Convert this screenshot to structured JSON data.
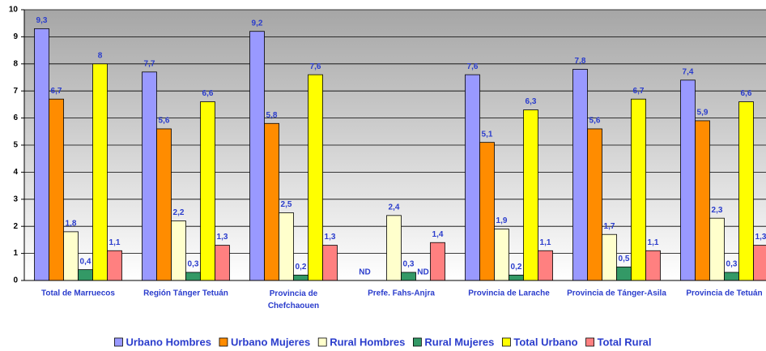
{
  "chart_data": {
    "type": "bar",
    "categories": [
      "Total de Marruecos",
      "Región Tánger Tetuán",
      "Provincia de Chefchaouen",
      "Prefe. Fahs-Anjra",
      "Provincia de Larache",
      "Provincia de Tánger-Asila",
      "Provincia de Tetuán"
    ],
    "series": [
      {
        "name": "Urbano Hombres",
        "color": "#9999ff",
        "values": [
          9.3,
          7.7,
          9.2,
          null,
          7.6,
          7.8,
          7.4
        ],
        "value_labels": [
          "9,3",
          "7,7",
          "9,2",
          "ND",
          "7,6",
          "7,8",
          "7,4"
        ]
      },
      {
        "name": "Urbano Mujeres",
        "color": "#ff8c00",
        "values": [
          6.7,
          5.6,
          5.8,
          null,
          5.1,
          5.6,
          5.9
        ],
        "value_labels": [
          "6,7",
          "5,6",
          "5,8",
          null,
          "5,1",
          "5,6",
          "5,9"
        ]
      },
      {
        "name": "Rural Hombres",
        "color": "#ffffcc",
        "values": [
          1.8,
          2.2,
          2.5,
          2.4,
          1.9,
          1.7,
          2.3
        ],
        "value_labels": [
          "1,8",
          "2,2",
          "2,5",
          "2,4",
          "1,9",
          "1,7",
          "2,3"
        ]
      },
      {
        "name": "Rural Mujeres",
        "color": "#339966",
        "values": [
          0.4,
          0.3,
          0.2,
          0.3,
          0.2,
          0.5,
          0.3
        ],
        "value_labels": [
          "0,4",
          "0,3",
          "0,2",
          "0,3",
          "0,2",
          "0,5",
          "0,3"
        ]
      },
      {
        "name": "Total Urbano",
        "color": "#ffff00",
        "values": [
          8,
          6.6,
          7.6,
          null,
          6.3,
          6.7,
          6.6
        ],
        "value_labels": [
          "8",
          "6,6",
          "7,6",
          "ND",
          "6,3",
          "6,7",
          "6,6"
        ]
      },
      {
        "name": "Total Rural",
        "color": "#ff8080",
        "values": [
          1.1,
          1.3,
          1.3,
          1.4,
          1.1,
          1.1,
          1.3
        ],
        "value_labels": [
          "1,1",
          "1,3",
          "1,3",
          "1,4",
          "1,1",
          "1,1",
          "1,3"
        ]
      }
    ],
    "ylim": [
      0,
      10
    ],
    "yticks": [
      0,
      1,
      2,
      3,
      4,
      5,
      6,
      7,
      8,
      9,
      10
    ],
    "grid": true,
    "legend": "bottom"
  }
}
